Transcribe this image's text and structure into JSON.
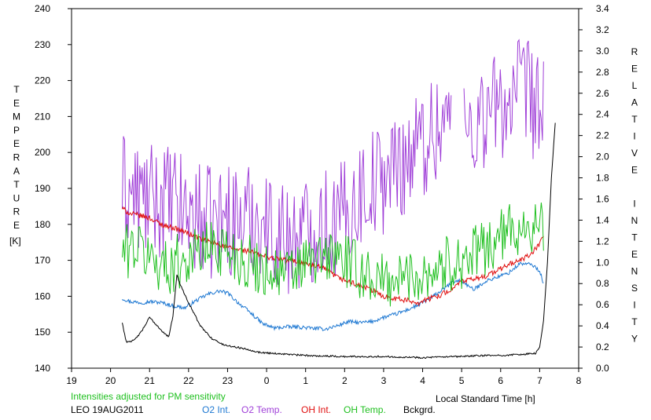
{
  "chart_data": {
    "type": "line",
    "left_axis_label": "TEMPERATURE",
    "left_axis_unit": "[K]",
    "right_axis_label": "RELATIVE INTENSITY",
    "xlabel": "Local Standard Time [h]",
    "note": "Intensities adjusted for PM sensitivity",
    "station_date": "LEO 19AUG2011",
    "x_tick_labels": [
      "19",
      "20",
      "21",
      "22",
      "23",
      "0",
      "1",
      "2",
      "3",
      "4",
      "5",
      "6",
      "7",
      "8"
    ],
    "y_left_ticks": [
      140,
      150,
      160,
      170,
      180,
      190,
      200,
      210,
      220,
      230,
      240
    ],
    "y_right_ticks": [
      "0.0",
      "0.2",
      "0.4",
      "0.6",
      "0.8",
      "1.0",
      "1.2",
      "1.4",
      "1.6",
      "1.8",
      "2.0",
      "2.2",
      "2.4",
      "2.6",
      "2.8",
      "3.0",
      "3.2",
      "3.4"
    ],
    "xlim_hours": [
      19,
      32
    ],
    "ylim_left": [
      140,
      240
    ],
    "ylim_right": [
      0,
      3.4
    ],
    "series": [
      {
        "name": "O2 Int.",
        "color": "#1e78d2",
        "axis": "right",
        "x": [
          20.3,
          20.5,
          20.8,
          21.0,
          21.3,
          21.6,
          21.9,
          22.2,
          22.5,
          22.8,
          23.0,
          23.3,
          23.6,
          23.9,
          24.2,
          24.5,
          24.8,
          25.1,
          25.5,
          25.8,
          26.1,
          26.4,
          26.7,
          27.0,
          27.3,
          27.6,
          27.9,
          28.2,
          28.5,
          28.8,
          29.0,
          29.3,
          29.6,
          29.9,
          30.2,
          30.5,
          30.8,
          31.0,
          31.1
        ],
        "y": [
          0.66,
          0.63,
          0.62,
          0.63,
          0.62,
          0.59,
          0.57,
          0.64,
          0.7,
          0.73,
          0.71,
          0.61,
          0.52,
          0.42,
          0.38,
          0.39,
          0.39,
          0.38,
          0.37,
          0.4,
          0.44,
          0.43,
          0.44,
          0.48,
          0.51,
          0.55,
          0.6,
          0.66,
          0.74,
          0.82,
          0.83,
          0.74,
          0.82,
          0.86,
          0.9,
          0.99,
          0.98,
          0.92,
          0.8
        ]
      },
      {
        "name": "O2 Temp.",
        "color": "#a040d8",
        "axis": "left",
        "x": [
          20.3,
          20.6,
          21.0,
          21.4,
          21.8,
          22.2,
          22.6,
          23.0,
          23.4,
          23.8,
          24.2,
          24.6,
          25.0,
          25.4,
          25.8,
          26.2,
          26.6,
          27.0,
          27.4,
          27.8,
          28.2,
          28.6,
          29.0,
          29.2,
          29.4,
          29.8,
          30.2,
          30.6,
          31.0,
          31.1
        ],
        "y": [
          190,
          188,
          186,
          187,
          184,
          182,
          180,
          182,
          181,
          182,
          178,
          176,
          178,
          181,
          180,
          186,
          191,
          193,
          197,
          201,
          205,
          210,
          208,
          207,
          209,
          212,
          214,
          217,
          212,
          210
        ]
      },
      {
        "name": "OH Int.",
        "color": "#e01010",
        "axis": "right",
        "x": [
          20.3,
          20.5,
          20.8,
          21.0,
          21.3,
          21.6,
          21.9,
          22.2,
          22.5,
          22.8,
          23.0,
          23.3,
          23.6,
          23.9,
          24.2,
          24.5,
          24.8,
          25.1,
          25.5,
          25.8,
          26.1,
          26.4,
          26.7,
          27.0,
          27.3,
          27.6,
          27.9,
          28.2,
          28.5,
          28.8,
          29.0,
          29.3,
          29.6,
          29.9,
          30.2,
          30.5,
          30.8,
          31.0,
          31.1
        ],
        "y": [
          1.51,
          1.46,
          1.44,
          1.42,
          1.36,
          1.33,
          1.29,
          1.24,
          1.2,
          1.17,
          1.14,
          1.12,
          1.1,
          1.06,
          1.04,
          1.02,
          1.01,
          0.98,
          0.94,
          0.86,
          0.82,
          0.78,
          0.74,
          0.68,
          0.66,
          0.64,
          0.62,
          0.66,
          0.7,
          0.76,
          0.82,
          0.84,
          0.87,
          0.92,
          0.98,
          1.02,
          1.08,
          1.18,
          1.25
        ]
      },
      {
        "name": "OH Temp.",
        "color": "#20c020",
        "axis": "left",
        "x": [
          20.3,
          20.6,
          21.0,
          21.4,
          21.8,
          22.2,
          22.6,
          23.0,
          23.4,
          23.8,
          24.2,
          24.6,
          25.0,
          25.4,
          25.8,
          26.2,
          26.6,
          27.0,
          27.4,
          27.8,
          28.2,
          28.6,
          29.0,
          29.4,
          29.8,
          30.2,
          30.6,
          31.0,
          31.1
        ],
        "y": [
          172,
          174,
          171,
          168,
          170,
          172,
          174,
          173,
          170,
          168,
          167,
          166,
          169,
          170,
          172,
          168,
          166,
          164,
          165,
          166,
          167,
          169,
          170,
          172,
          175,
          178,
          180,
          179,
          178
        ]
      },
      {
        "name": "Bckgrd.",
        "color": "#000000",
        "axis": "right",
        "x": [
          20.3,
          20.4,
          20.6,
          20.8,
          21.0,
          21.2,
          21.4,
          21.5,
          21.6,
          21.7,
          21.8,
          22.0,
          22.3,
          22.6,
          22.9,
          23.2,
          23.5,
          23.8,
          24.2,
          25.0,
          26.0,
          27.0,
          28.0,
          29.0,
          29.5,
          30.0,
          30.5,
          30.9,
          31.0,
          31.1,
          31.2,
          31.3,
          31.4
        ],
        "y": [
          0.43,
          0.25,
          0.26,
          0.35,
          0.48,
          0.4,
          0.32,
          0.3,
          0.5,
          0.88,
          0.78,
          0.62,
          0.4,
          0.28,
          0.22,
          0.2,
          0.18,
          0.15,
          0.14,
          0.12,
          0.11,
          0.11,
          0.1,
          0.11,
          0.12,
          0.12,
          0.13,
          0.14,
          0.2,
          0.45,
          1.0,
          1.8,
          2.32
        ]
      }
    ]
  }
}
